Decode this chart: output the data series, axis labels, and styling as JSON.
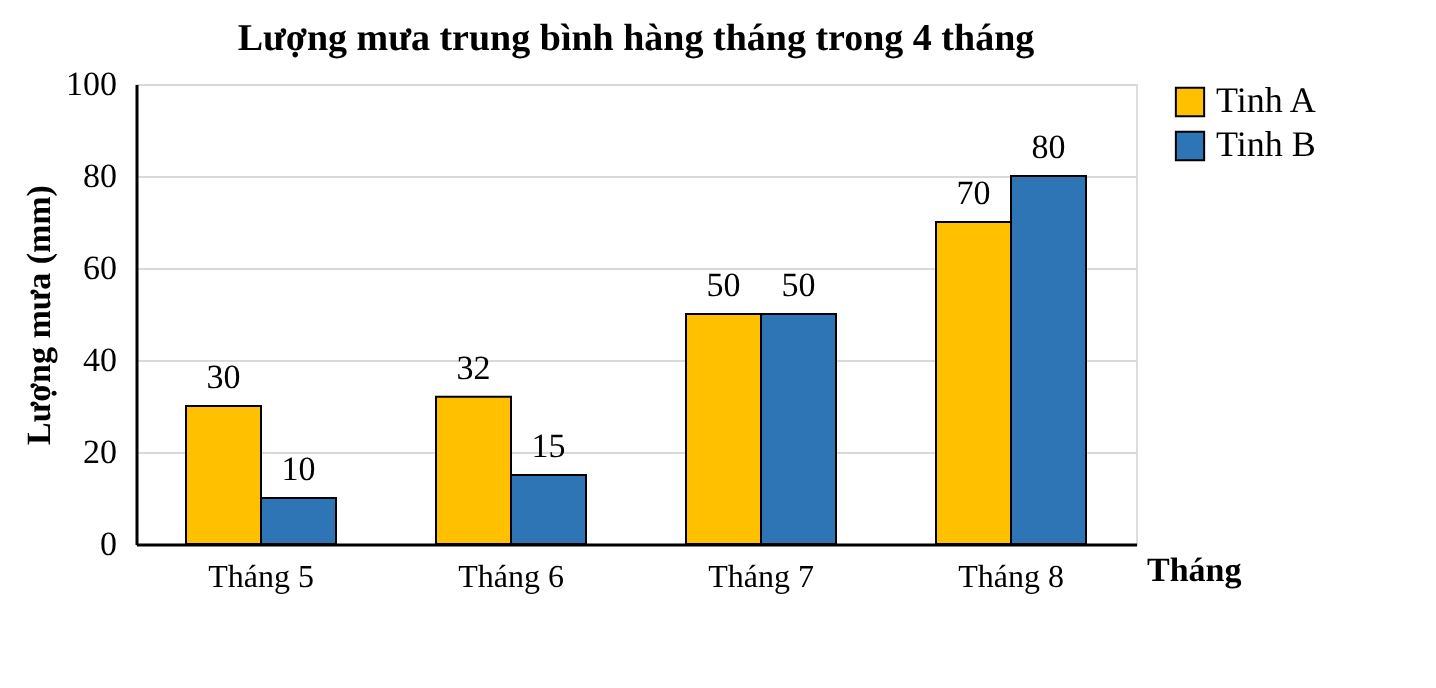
{
  "chart_data": {
    "type": "bar",
    "title": "Lượng mưa trung bình hàng tháng trong 4 tháng",
    "xlabel": "Tháng",
    "ylabel": "Lượng mưa (mm)",
    "categories": [
      "Tháng 5",
      "Tháng 6",
      "Tháng 7",
      "Tháng 8"
    ],
    "series": [
      {
        "name": "Tinh A",
        "color": "#ffc000",
        "values": [
          30,
          32,
          50,
          70
        ]
      },
      {
        "name": "Tinh B",
        "color": "#2e75b6",
        "values": [
          10,
          15,
          50,
          80
        ]
      }
    ],
    "ylim": [
      0,
      100
    ],
    "yticks": [
      0,
      20,
      40,
      60,
      80,
      100
    ],
    "grid": "y",
    "legend": "right",
    "data_labels": true
  }
}
